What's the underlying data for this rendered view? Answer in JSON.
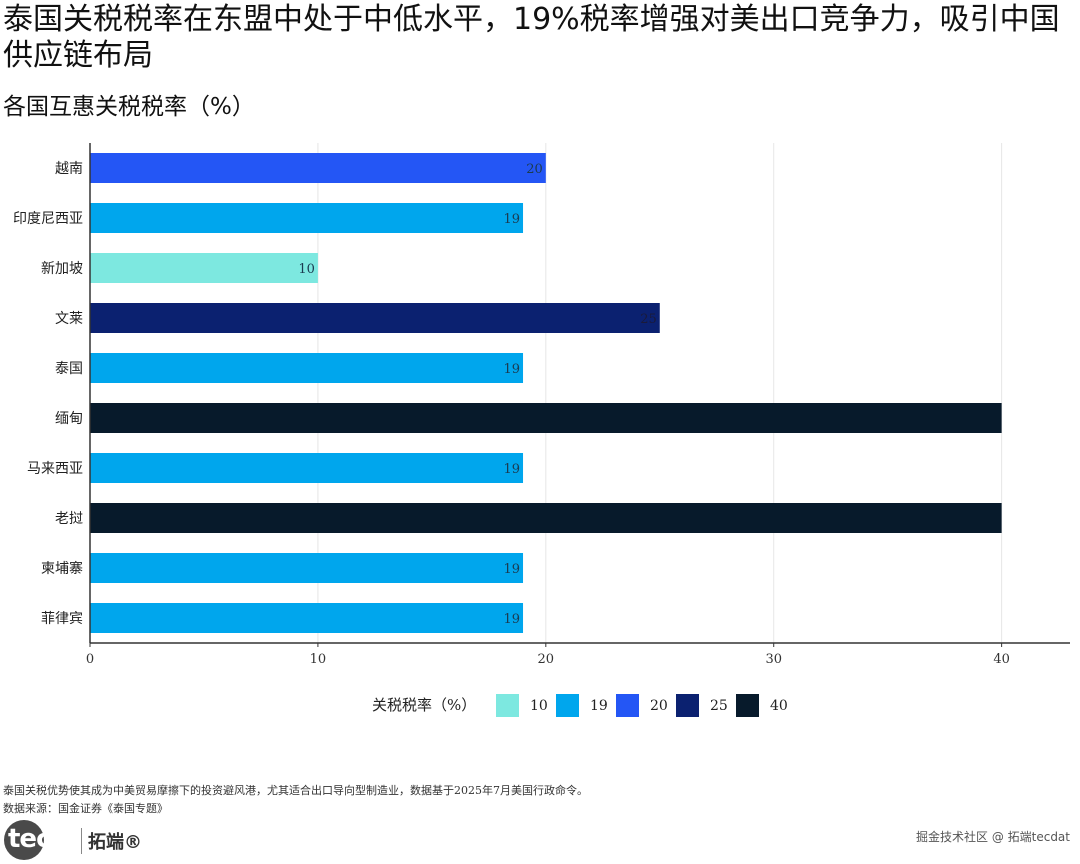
{
  "title": "泰国关税税率在东盟中处于中低水平，19%税率增强对美出口竞争力，吸引中国供应链布局",
  "subtitle": "各国互惠关税税率（%）",
  "chart_data": {
    "type": "bar",
    "orientation": "horizontal",
    "categories": [
      "越南",
      "印度尼西亚",
      "新加坡",
      "文莱",
      "泰国",
      "缅甸",
      "马来西亚",
      "老挝",
      "柬埔寨",
      "菲律宾"
    ],
    "values": [
      20,
      19,
      10,
      25,
      19,
      40,
      19,
      40,
      19,
      19
    ],
    "data_labels": [
      "20",
      "19",
      "10",
      "25",
      "19",
      "",
      "19",
      "",
      "19",
      "19"
    ],
    "xlim": [
      0,
      43
    ],
    "x_ticks": [
      0,
      10,
      20,
      30,
      40
    ],
    "x_tick_labels": [
      "0",
      "10",
      "20",
      "30",
      "40"
    ],
    "grid": true,
    "legend": {
      "title": "关税税率（%）",
      "placement": "bottom",
      "items": [
        {
          "label": "10",
          "color": "#7de8e0"
        },
        {
          "label": "19",
          "color": "#00a6ed"
        },
        {
          "label": "20",
          "color": "#2456f5"
        },
        {
          "label": "25",
          "color": "#0b2170"
        },
        {
          "label": "40",
          "color": "#071a2b"
        }
      ]
    },
    "colors": {
      "10": "#7de8e0",
      "19": "#00a6ed",
      "20": "#2456f5",
      "25": "#0b2170",
      "40": "#071a2b"
    }
  },
  "caption": "泰国关税优势使其成为中美贸易摩擦下的投资避风港，尤其适合出口导向型制造业，数据基于2025年7月美国行政命令。",
  "source": "数据来源：国金证券《泰国专题》",
  "logo": {
    "brand": "tecdat",
    "cn": "拓端®"
  },
  "watermark": "掘金技术社区 @ 拓端tecdat"
}
